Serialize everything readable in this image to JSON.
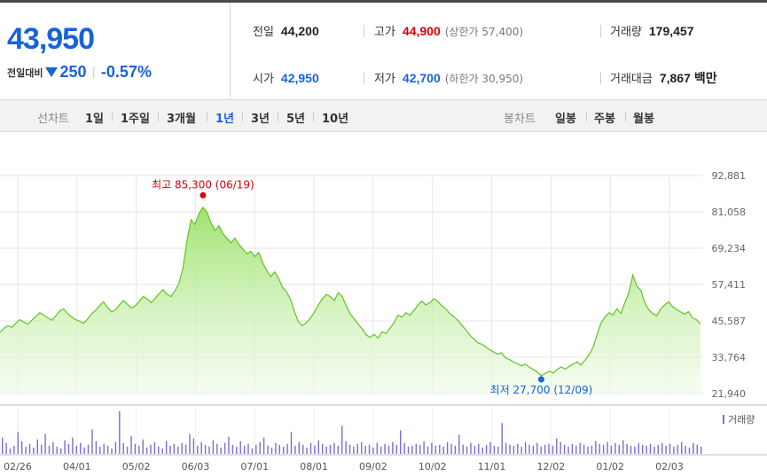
{
  "quote": {
    "price": "43,950",
    "change_label": "전일대비",
    "change_value": "250",
    "change_rate": "-0.57%",
    "direction": "down",
    "prev_close": {
      "label": "전일",
      "value": "44,200"
    },
    "open": {
      "label": "시가",
      "value": "42,950"
    },
    "high": {
      "label": "고가",
      "value": "44,900",
      "limit": "(상한가 57,400)"
    },
    "low": {
      "label": "저가",
      "value": "42,700",
      "limit": "(하한가 30,950)"
    },
    "volume": {
      "label": "거래량",
      "value": "179,457"
    },
    "amount": {
      "label": "거래대금",
      "value": "7,867",
      "unit": "백만"
    }
  },
  "tabs": {
    "line_label": "선차트",
    "line_periods": [
      "1일",
      "1주일",
      "3개월",
      "1년",
      "3년",
      "5년",
      "10년"
    ],
    "active_period": "1년",
    "candle_label": "봉차트",
    "candle_periods": [
      "일봉",
      "주봉",
      "월봉"
    ]
  },
  "colors": {
    "up": "#d7000f",
    "down": "#1763d9",
    "line": "#62c322",
    "volume": "#7c6ccf"
  },
  "chart_data": {
    "type": "area",
    "y_ticks": [
      "92,881",
      "81,058",
      "69,234",
      "57,411",
      "45,587",
      "33,764",
      "21,940"
    ],
    "ylim": [
      21940,
      92881
    ],
    "x_ticks": [
      "02/26",
      "04/01",
      "05/02",
      "06/03",
      "07/01",
      "08/01",
      "09/02",
      "10/02",
      "11/01",
      "12/02",
      "01/02",
      "02/03"
    ],
    "series": [
      {
        "values": [
          41800,
          43200,
          44000,
          43500,
          44800,
          46000,
          45200,
          44500,
          45800,
          47000,
          48200,
          47500,
          46500,
          45800,
          47200,
          48800,
          49500,
          48000,
          46800,
          46000,
          45500,
          44800,
          46200,
          47800,
          49000,
          50500,
          51800,
          50000,
          48500,
          49200,
          50800,
          52200,
          51000,
          49800,
          50500,
          52000,
          53500,
          52800,
          51500,
          53000,
          54500,
          55800,
          54200,
          53500,
          55500,
          58000,
          63000,
          72000,
          78500,
          77000,
          80500,
          82500,
          81000,
          77500,
          75000,
          76500,
          74000,
          72500,
          71000,
          72500,
          70500,
          69000,
          67500,
          68200,
          66500,
          67800,
          64500,
          62000,
          60000,
          61500,
          59500,
          56500,
          55000,
          52500,
          48500,
          45200,
          44000,
          45000,
          46500,
          48500,
          50800,
          52800,
          54200,
          53500,
          52200,
          54800,
          53500,
          50500,
          47800,
          46200,
          44500,
          43000,
          41000,
          40200,
          41200,
          40000,
          42000,
          41500,
          43200,
          45000,
          47500,
          46800,
          48200,
          47500,
          49000,
          50800,
          52000,
          50800,
          51500,
          52800,
          52000,
          50500,
          49500,
          48000,
          47000,
          45800,
          44200,
          42800,
          41000,
          39800,
          38500,
          38000,
          37200,
          36200,
          35500,
          34800,
          35200,
          33600,
          33000,
          32200,
          31600,
          31000,
          31500,
          30500,
          29800,
          28900,
          27700,
          28500,
          29200,
          28600,
          29800,
          30600,
          29900,
          30800,
          31500,
          32200,
          31200,
          32800,
          34500,
          37000,
          41000,
          44800,
          46800,
          48200,
          47500,
          49500,
          48000,
          51500,
          54800,
          60500,
          57000,
          55500,
          51500,
          49200,
          48000,
          47200,
          49500,
          50800,
          51800,
          50200,
          49300,
          48500,
          47800,
          48600,
          46500,
          46000,
          44500
        ]
      }
    ],
    "max_annotation": {
      "text": "최고 85,300 (06/19)",
      "value": 85300
    },
    "min_annotation": {
      "text": "최저 27,700 (12/09)",
      "value": 27700
    },
    "volume_legend": "거래량",
    "volume": [
      18,
      12,
      6,
      9,
      24,
      14,
      8,
      11,
      7,
      16,
      10,
      22,
      9,
      13,
      8,
      6,
      15,
      11,
      18,
      9,
      12,
      7,
      10,
      27,
      14,
      8,
      11,
      9,
      6,
      13,
      47,
      12,
      8,
      20,
      11,
      9,
      16,
      7,
      10,
      13,
      8,
      6,
      14,
      9,
      11,
      8,
      12,
      10,
      22,
      17,
      9,
      13,
      10,
      8,
      15,
      11,
      7,
      12,
      19,
      10,
      8,
      14,
      9,
      11,
      6,
      10,
      13,
      18,
      9,
      7,
      12,
      10,
      8,
      11,
      24,
      9,
      13,
      10,
      7,
      12,
      9,
      15,
      11,
      8,
      10,
      12,
      9,
      31,
      14,
      10,
      8,
      11,
      13,
      9,
      10,
      7,
      12,
      8,
      11,
      9,
      13,
      10,
      26,
      12,
      8,
      9,
      11,
      10,
      14,
      8,
      12,
      9,
      10,
      8,
      13,
      11,
      9,
      21,
      10,
      8,
      12,
      9,
      11,
      7,
      10,
      13,
      9,
      8,
      34,
      12,
      10,
      9,
      11,
      8,
      13,
      10,
      9,
      12,
      8,
      10,
      11,
      9,
      17,
      13,
      10,
      8,
      11,
      9,
      12,
      10,
      8,
      9,
      14,
      11,
      10,
      13,
      9,
      12,
      10,
      15,
      11,
      9,
      8,
      12,
      10,
      9,
      11,
      8,
      10,
      12,
      9,
      11,
      8,
      10,
      13,
      9,
      7,
      12,
      10,
      8
    ]
  }
}
